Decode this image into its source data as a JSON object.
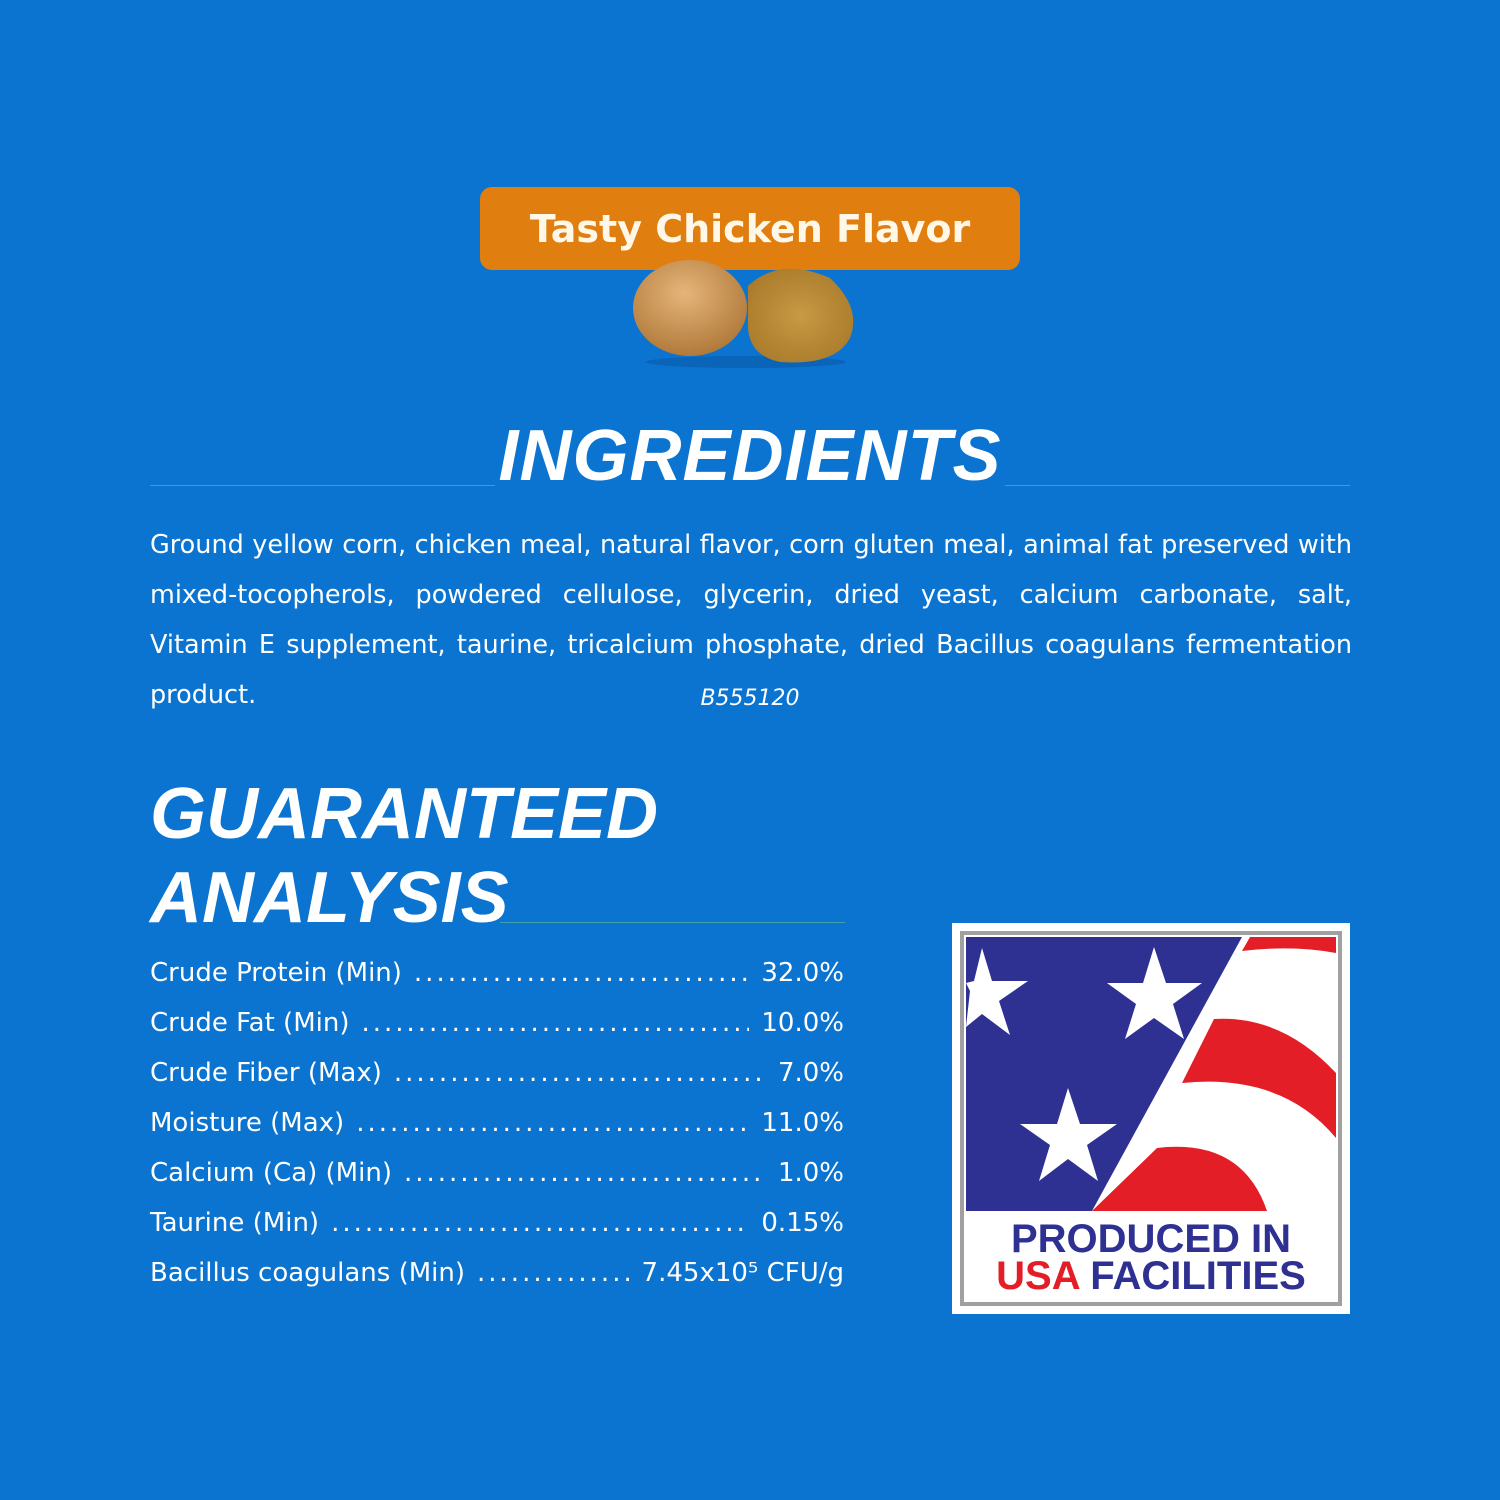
{
  "flavor_label": "Tasty Chicken Flavor",
  "ingredients": {
    "heading": "INGREDIENTS",
    "text": "Ground yellow corn, chicken meal, natural flavor, corn gluten meal, animal fat preserved with mixed-tocopherols, powdered cellulose, glycerin, dried yeast, calcium carbonate, salt, Vitamin E supplement, taurine, tricalcium phosphate, dried Bacillus coagulans fermentation product.",
    "code": "B555120"
  },
  "guaranteed_analysis": {
    "heading_line1": "GUARANTEED",
    "heading_line2": "ANALYSIS",
    "rows": [
      {
        "label": "Crude Protein (Min)",
        "value": "32.0%"
      },
      {
        "label": "Crude Fat (Min)",
        "value": "10.0%"
      },
      {
        "label": "Crude Fiber (Max)",
        "value": "7.0%"
      },
      {
        "label": "Moisture (Max)",
        "value": "11.0%"
      },
      {
        "label": "Calcium (Ca) (Min)",
        "value": "1.0%"
      },
      {
        "label": "Taurine (Min)",
        "value": "0.15%"
      },
      {
        "label": "Bacillus coagulans (Min)",
        "value": "7.45x10⁵ CFU/g"
      }
    ]
  },
  "badge": {
    "line1": "PRODUCED IN",
    "line2_red": "USA",
    "line2_blue": "FACILITIES"
  },
  "colors": {
    "background": "#0b73d0",
    "flavor_bar": "#e07f10",
    "flag_blue": "#2e3192",
    "flag_red": "#e41e26"
  }
}
